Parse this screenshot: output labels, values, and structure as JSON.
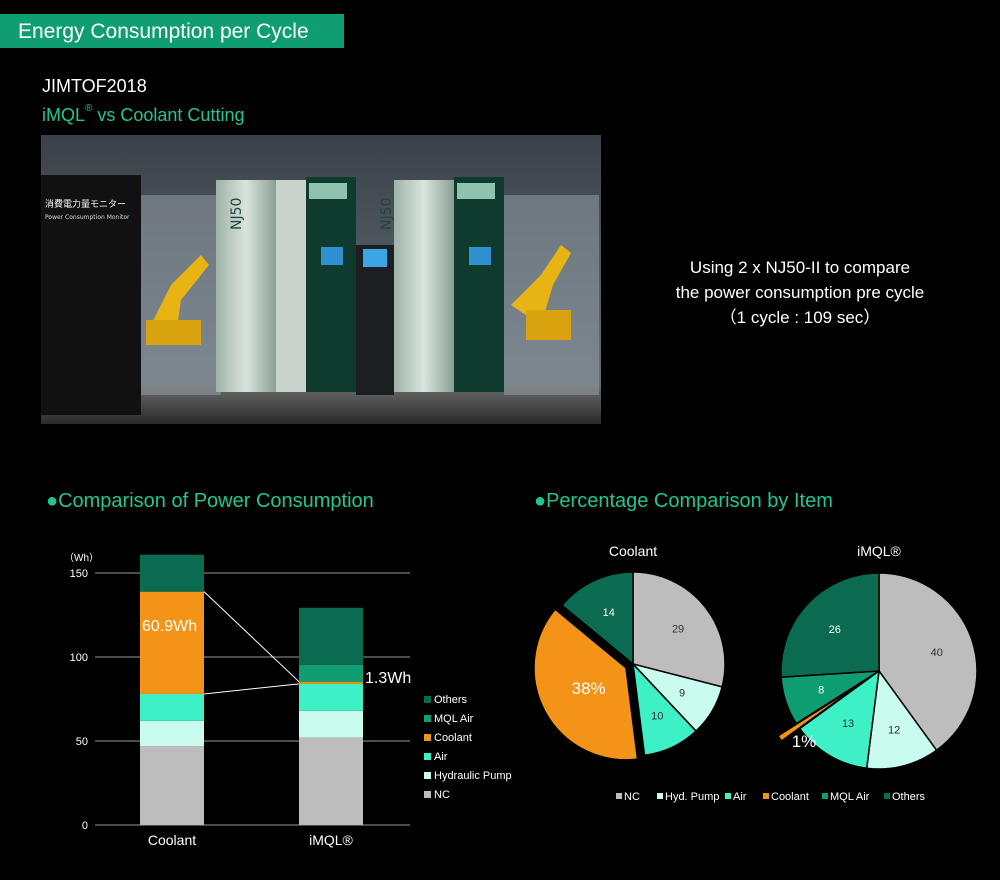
{
  "header": {
    "title": "Energy Consumption per Cycle"
  },
  "intro": {
    "event": "JIMTOF2018",
    "subtitle_prefix": "iMQL",
    "subtitle_reg": "®",
    "subtitle_suffix": " vs Coolant Cutting"
  },
  "photo": {
    "panel_sign": "消費電力量モニター",
    "panel_sign2": "Power Consumption Monitor",
    "machine_label": "NJ50"
  },
  "description": {
    "line1": "Using 2 x NJ50-II to compare",
    "line2": "the power consumption pre cycle",
    "line3": "（1 cycle : 109 sec）"
  },
  "sections": {
    "left": "●Comparison of Power Consumption",
    "right": "●Percentage Comparison by Item"
  },
  "colors": {
    "NC": "#bdbdbd",
    "Hydraulic Pump": "#c9fbef",
    "Air": "#3ef0c6",
    "Coolant": "#f39419",
    "MQL Air": "#0f9d72",
    "Others": "#0b6b50",
    "accent": "#21c592"
  },
  "chart_data": [
    {
      "type": "bar",
      "stacked": true,
      "ylabel": "（Wh）",
      "ylim": [
        0,
        150
      ],
      "yticks": [
        0,
        50,
        100,
        150
      ],
      "grid": true,
      "categories": [
        "Coolant",
        "iMQL®"
      ],
      "series": [
        {
          "name": "NC",
          "values": [
            47,
            52
          ]
        },
        {
          "name": "Hydraulic Pump",
          "values": [
            15,
            16
          ]
        },
        {
          "name": "Air",
          "values": [
            16,
            16
          ]
        },
        {
          "name": "Coolant",
          "values": [
            60.9,
            1.3
          ]
        },
        {
          "name": "MQL Air",
          "values": [
            0,
            10
          ]
        },
        {
          "name": "Others",
          "values": [
            22,
            34
          ]
        }
      ],
      "annotations": [
        "60.9Wh",
        "1.3Wh"
      ],
      "legend_position": "right",
      "legend_order": [
        "Others",
        "MQL Air",
        "Coolant",
        "Air",
        "Hydraulic Pump",
        "NC"
      ]
    },
    {
      "type": "pie",
      "title": "Coolant",
      "slices": [
        {
          "name": "NC",
          "value": 29,
          "label": "29"
        },
        {
          "name": "Hydraulic Pump",
          "value": 9,
          "label": "9"
        },
        {
          "name": "Air",
          "value": 10,
          "label": "10"
        },
        {
          "name": "Coolant",
          "value": 38,
          "label": "38%"
        },
        {
          "name": "MQL Air",
          "value": 0,
          "label": ""
        },
        {
          "name": "Others",
          "value": 14,
          "label": "14"
        }
      ]
    },
    {
      "type": "pie",
      "title": "iMQL®",
      "slices": [
        {
          "name": "NC",
          "value": 40,
          "label": "40"
        },
        {
          "name": "Hydraulic Pump",
          "value": 12,
          "label": "12"
        },
        {
          "name": "Air",
          "value": 13,
          "label": "13"
        },
        {
          "name": "Coolant",
          "value": 1,
          "label": "1%"
        },
        {
          "name": "MQL Air",
          "value": 8,
          "label": "8"
        },
        {
          "name": "Others",
          "value": 26,
          "label": "26"
        }
      ],
      "legend": [
        "NC",
        "Hyd. Pump",
        "Air",
        "Coolant",
        "MQL Air",
        "Others"
      ],
      "legend_position": "bottom"
    }
  ]
}
